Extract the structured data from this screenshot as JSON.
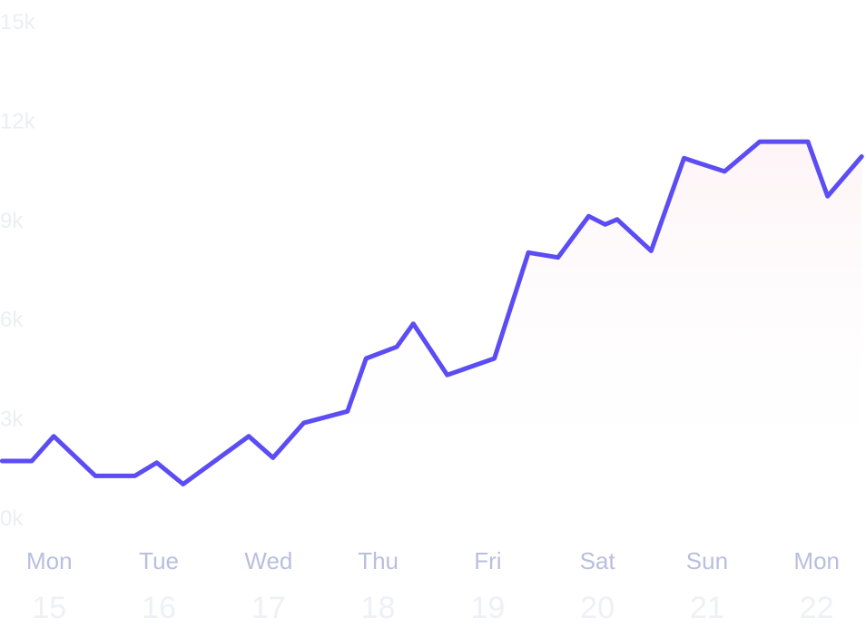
{
  "chart_data": {
    "type": "area",
    "title": "",
    "xlabel": "",
    "ylabel": "",
    "ylim": [
      0,
      15000
    ],
    "yticks": [
      "0k",
      "3k",
      "6k",
      "9k",
      "12k",
      "15k"
    ],
    "ytick_values": [
      0,
      3000,
      6000,
      9000,
      12000,
      15000
    ],
    "xlim": [
      14.55,
      22.45
    ],
    "xticks": [
      {
        "day": "Mon",
        "date": "15",
        "x": 15
      },
      {
        "day": "Tue",
        "date": "16",
        "x": 16
      },
      {
        "day": "Wed",
        "date": "17",
        "x": 17
      },
      {
        "day": "Thu",
        "date": "18",
        "x": 18
      },
      {
        "day": "Fri",
        "date": "19",
        "x": 19
      },
      {
        "day": "Sat",
        "date": "20",
        "x": 20
      },
      {
        "day": "Sun",
        "date": "21",
        "x": 21
      },
      {
        "day": "Mon",
        "date": "22",
        "x": 22
      }
    ],
    "grid": false,
    "legend": "none",
    "series": [
      {
        "points": [
          {
            "x": 14.57,
            "y": 1700
          },
          {
            "x": 14.84,
            "y": 1700
          },
          {
            "x": 15.04,
            "y": 2450
          },
          {
            "x": 15.42,
            "y": 1250
          },
          {
            "x": 15.78,
            "y": 1250
          },
          {
            "x": 15.98,
            "y": 1650
          },
          {
            "x": 16.22,
            "y": 1000
          },
          {
            "x": 16.82,
            "y": 2450
          },
          {
            "x": 17.04,
            "y": 1800
          },
          {
            "x": 17.32,
            "y": 2850
          },
          {
            "x": 17.72,
            "y": 3200
          },
          {
            "x": 17.89,
            "y": 4800
          },
          {
            "x": 18.17,
            "y": 5150
          },
          {
            "x": 18.32,
            "y": 5850
          },
          {
            "x": 18.63,
            "y": 4300
          },
          {
            "x": 19.06,
            "y": 4800
          },
          {
            "x": 19.37,
            "y": 8000
          },
          {
            "x": 19.64,
            "y": 7850
          },
          {
            "x": 19.92,
            "y": 9100
          },
          {
            "x": 20.07,
            "y": 8850
          },
          {
            "x": 20.18,
            "y": 9000
          },
          {
            "x": 20.49,
            "y": 8050
          },
          {
            "x": 20.79,
            "y": 10850
          },
          {
            "x": 21.16,
            "y": 10450
          },
          {
            "x": 21.48,
            "y": 11350
          },
          {
            "x": 21.92,
            "y": 11350
          },
          {
            "x": 22.1,
            "y": 9700
          },
          {
            "x": 22.41,
            "y": 10900
          }
        ]
      }
    ],
    "colors": {
      "line": "#5b4cf4",
      "area_fill": "#fdf4f6",
      "ytick": "#eceef4",
      "xday": "#b9bfdc",
      "xdate": "#eef0f6"
    }
  }
}
